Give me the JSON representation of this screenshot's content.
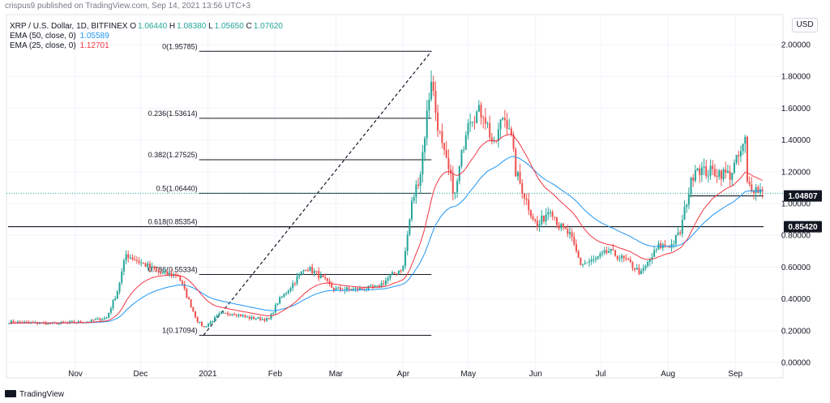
{
  "header": {
    "published": "crispus9 published on TradingView.com, Sep 14, 2021 13:56 UTC+3"
  },
  "legend": {
    "symbol": "XRP / U.S. Dollar, 1D, BITFINEX",
    "ohlc": [
      {
        "k": "O",
        "v": "1.06440"
      },
      {
        "k": "H",
        "v": "1.08380"
      },
      {
        "k": "L",
        "v": "1.05650"
      },
      {
        "k": "C",
        "v": "1.07620"
      }
    ],
    "ema50_label": "EMA (50, close, 0)",
    "ema50_value": "1.05589",
    "ema25_label": "EMA (25, close, 0)",
    "ema25_value": "1.12701"
  },
  "currency_button": "USD",
  "footer": {
    "brand": "TradingView"
  },
  "colors": {
    "up": "#26a69a",
    "down": "#ef5350",
    "ema50": "#2196f3",
    "ema25": "#f23645",
    "grid": "#f0f3fa",
    "text": "#131722",
    "dotted_price": "#26a69a"
  },
  "chart_data": {
    "type": "candlestick",
    "title": "XRP / U.S. Dollar, 1D, BITFINEX",
    "ylabel": "USD",
    "ylim": [
      0.0,
      2.0
    ],
    "y_ticks": [
      "0.00000",
      "0.20000",
      "0.40000",
      "0.60000",
      "0.80000",
      "1.00000",
      "1.20000",
      "1.40000",
      "1.60000",
      "1.80000",
      "2.00000"
    ],
    "x_ticks": [
      "Nov",
      "Dec",
      "2021",
      "Feb",
      "Mar",
      "Apr",
      "May",
      "Jun",
      "Jul",
      "Aug",
      "Sep"
    ],
    "x_tick_dates": [
      "2020-11-01",
      "2020-12-01",
      "2021-01-01",
      "2021-02-01",
      "2021-03-01",
      "2021-04-01",
      "2021-05-01",
      "2021-06-01",
      "2021-07-01",
      "2021-08-01",
      "2021-09-01"
    ],
    "date_range": [
      "2020-10-01",
      "2021-09-14"
    ],
    "price_labels": [
      {
        "value": 1.04807,
        "text": "1.04807",
        "style": "filled"
      },
      {
        "value": 0.8542,
        "text": "0.85420",
        "style": "filled"
      }
    ],
    "horizontal_lines": [
      {
        "value": 0.8542,
        "from": "2020-10-01",
        "to": "2021-09-14"
      },
      {
        "value": 1.04807,
        "from": "2021-08-11",
        "to": "2021-09-14"
      }
    ],
    "fibonacci": {
      "from_date": "2020-12-28",
      "to_date": "2021-04-14",
      "trend_line": [
        {
          "date": "2020-12-30",
          "value": 0.17094
        },
        {
          "date": "2021-04-14",
          "value": 1.95785
        }
      ],
      "levels": [
        {
          "ratio": "0",
          "price": "1.95785",
          "label": "0(1.95785)",
          "value": 1.95785
        },
        {
          "ratio": "0.236",
          "price": "1.53614",
          "label": "0.236(1.53614)",
          "value": 1.53614
        },
        {
          "ratio": "0.382",
          "price": "1.27525",
          "label": "0.382(1.27525)",
          "value": 1.27525
        },
        {
          "ratio": "0.5",
          "price": "1.06440",
          "label": "0.5(1.06440)",
          "value": 1.0644
        },
        {
          "ratio": "0.618",
          "price": "0.85354",
          "label": "0.618(0.85354)",
          "value": 0.85354
        },
        {
          "ratio": "0.786",
          "price": "0.55334",
          "label": "0.786(0.55334)",
          "value": 0.55334
        },
        {
          "ratio": "1",
          "price": "0.17094",
          "label": "1(0.17094)",
          "value": 0.17094
        }
      ]
    },
    "anchors": [
      [
        "2020-10-01",
        0.255
      ],
      [
        "2020-10-20",
        0.245
      ],
      [
        "2020-11-05",
        0.255
      ],
      [
        "2020-11-15",
        0.28
      ],
      [
        "2020-11-20",
        0.45
      ],
      [
        "2020-11-24",
        0.68
      ],
      [
        "2020-12-02",
        0.62
      ],
      [
        "2020-12-10",
        0.56
      ],
      [
        "2020-12-18",
        0.55
      ],
      [
        "2020-12-22",
        0.42
      ],
      [
        "2020-12-27",
        0.26
      ],
      [
        "2020-12-30",
        0.22
      ],
      [
        "2021-01-06",
        0.3
      ],
      [
        "2021-01-12",
        0.31
      ],
      [
        "2021-01-20",
        0.28
      ],
      [
        "2021-01-29",
        0.27
      ],
      [
        "2021-02-02",
        0.38
      ],
      [
        "2021-02-07",
        0.46
      ],
      [
        "2021-02-15",
        0.6
      ],
      [
        "2021-02-20",
        0.56
      ],
      [
        "2021-02-28",
        0.46
      ],
      [
        "2021-03-10",
        0.46
      ],
      [
        "2021-03-20",
        0.47
      ],
      [
        "2021-03-27",
        0.55
      ],
      [
        "2021-04-01",
        0.6
      ],
      [
        "2021-04-05",
        1.0
      ],
      [
        "2021-04-09",
        1.2
      ],
      [
        "2021-04-14",
        1.8
      ],
      [
        "2021-04-16",
        1.58
      ],
      [
        "2021-04-19",
        1.35
      ],
      [
        "2021-04-25",
        1.05
      ],
      [
        "2021-05-01",
        1.55
      ],
      [
        "2021-05-08",
        1.58
      ],
      [
        "2021-05-13",
        1.35
      ],
      [
        "2021-05-17",
        1.55
      ],
      [
        "2021-05-20",
        1.5
      ],
      [
        "2021-05-23",
        1.2
      ],
      [
        "2021-05-29",
        0.98
      ],
      [
        "2021-06-02",
        0.85
      ],
      [
        "2021-06-08",
        0.98
      ],
      [
        "2021-06-12",
        0.86
      ],
      [
        "2021-06-17",
        0.8
      ],
      [
        "2021-06-22",
        0.62
      ],
      [
        "2021-06-28",
        0.64
      ],
      [
        "2021-07-05",
        0.7
      ],
      [
        "2021-07-13",
        0.64
      ],
      [
        "2021-07-20",
        0.56
      ],
      [
        "2021-07-28",
        0.73
      ],
      [
        "2021-08-03",
        0.74
      ],
      [
        "2021-08-07",
        0.82
      ],
      [
        "2021-08-10",
        1.02
      ],
      [
        "2021-08-14",
        1.24
      ],
      [
        "2021-08-18",
        1.2
      ],
      [
        "2021-08-24",
        1.2
      ],
      [
        "2021-08-30",
        1.18
      ],
      [
        "2021-09-05",
        1.35
      ],
      [
        "2021-09-06",
        1.4
      ],
      [
        "2021-09-07",
        1.12
      ],
      [
        "2021-09-10",
        1.1
      ],
      [
        "2021-09-14",
        1.0762
      ]
    ]
  }
}
